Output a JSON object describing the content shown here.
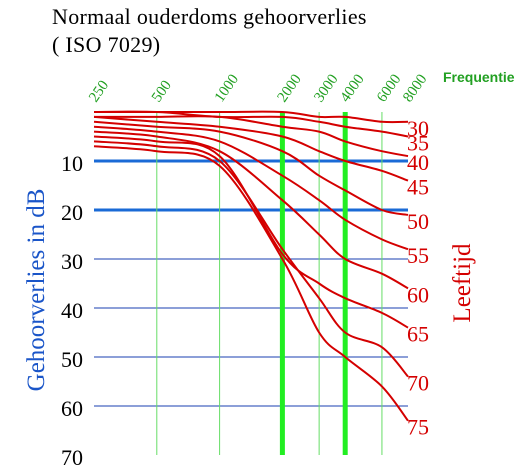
{
  "title_line1": "Normaal ouderdoms gehoorverlies",
  "title_line2": "( ISO 7029)",
  "chart_data": {
    "type": "line",
    "x_label": "Frequentie",
    "y_label": "Gehoorverlies in dB",
    "right_label": "Leeftijd",
    "x_ticks": [
      250,
      500,
      1000,
      2000,
      3000,
      4000,
      6000,
      8000
    ],
    "y_ticks": [
      10,
      20,
      30,
      40,
      50,
      60,
      70
    ],
    "ylim": [
      0,
      70
    ],
    "x_scale": "log",
    "highlighted_frequencies": [
      2000,
      4000
    ],
    "highlighted_levels": [
      10,
      20
    ],
    "colors": {
      "curves": "#d40000",
      "age_labels": "#d40000",
      "y_axis": "#1a55c8",
      "freq_labels": "#22a022",
      "grid_v": "#66dd66",
      "grid_h": "#1a3fb0",
      "highlight_v": "#22ee22",
      "highlight_h": "#1a6ad6"
    },
    "series": [
      {
        "name": "30",
        "values": [
          0,
          0,
          0,
          0,
          1,
          1,
          2,
          2
        ]
      },
      {
        "name": "35",
        "values": [
          0,
          0,
          1,
          1,
          2,
          3,
          4,
          5
        ]
      },
      {
        "name": "40",
        "values": [
          1,
          1,
          1,
          3,
          4,
          6,
          8,
          9
        ]
      },
      {
        "name": "45",
        "values": [
          1,
          2,
          3,
          5,
          8,
          10,
          12,
          14
        ]
      },
      {
        "name": "50",
        "values": [
          2,
          3,
          4,
          8,
          13,
          16,
          20,
          21
        ]
      },
      {
        "name": "55",
        "values": [
          3,
          4,
          6,
          13,
          18,
          22,
          26,
          28
        ]
      },
      {
        "name": "60",
        "values": [
          4,
          5,
          8,
          18,
          25,
          30,
          33,
          36
        ]
      },
      {
        "name": "65",
        "values": [
          5,
          6,
          9,
          29,
          35,
          38,
          41,
          44
        ]
      },
      {
        "name": "70",
        "values": [
          6,
          7,
          10,
          28,
          38,
          45,
          48,
          54
        ]
      },
      {
        "name": "75",
        "values": [
          7,
          8,
          11,
          30,
          45,
          50,
          56,
          63
        ]
      }
    ]
  }
}
